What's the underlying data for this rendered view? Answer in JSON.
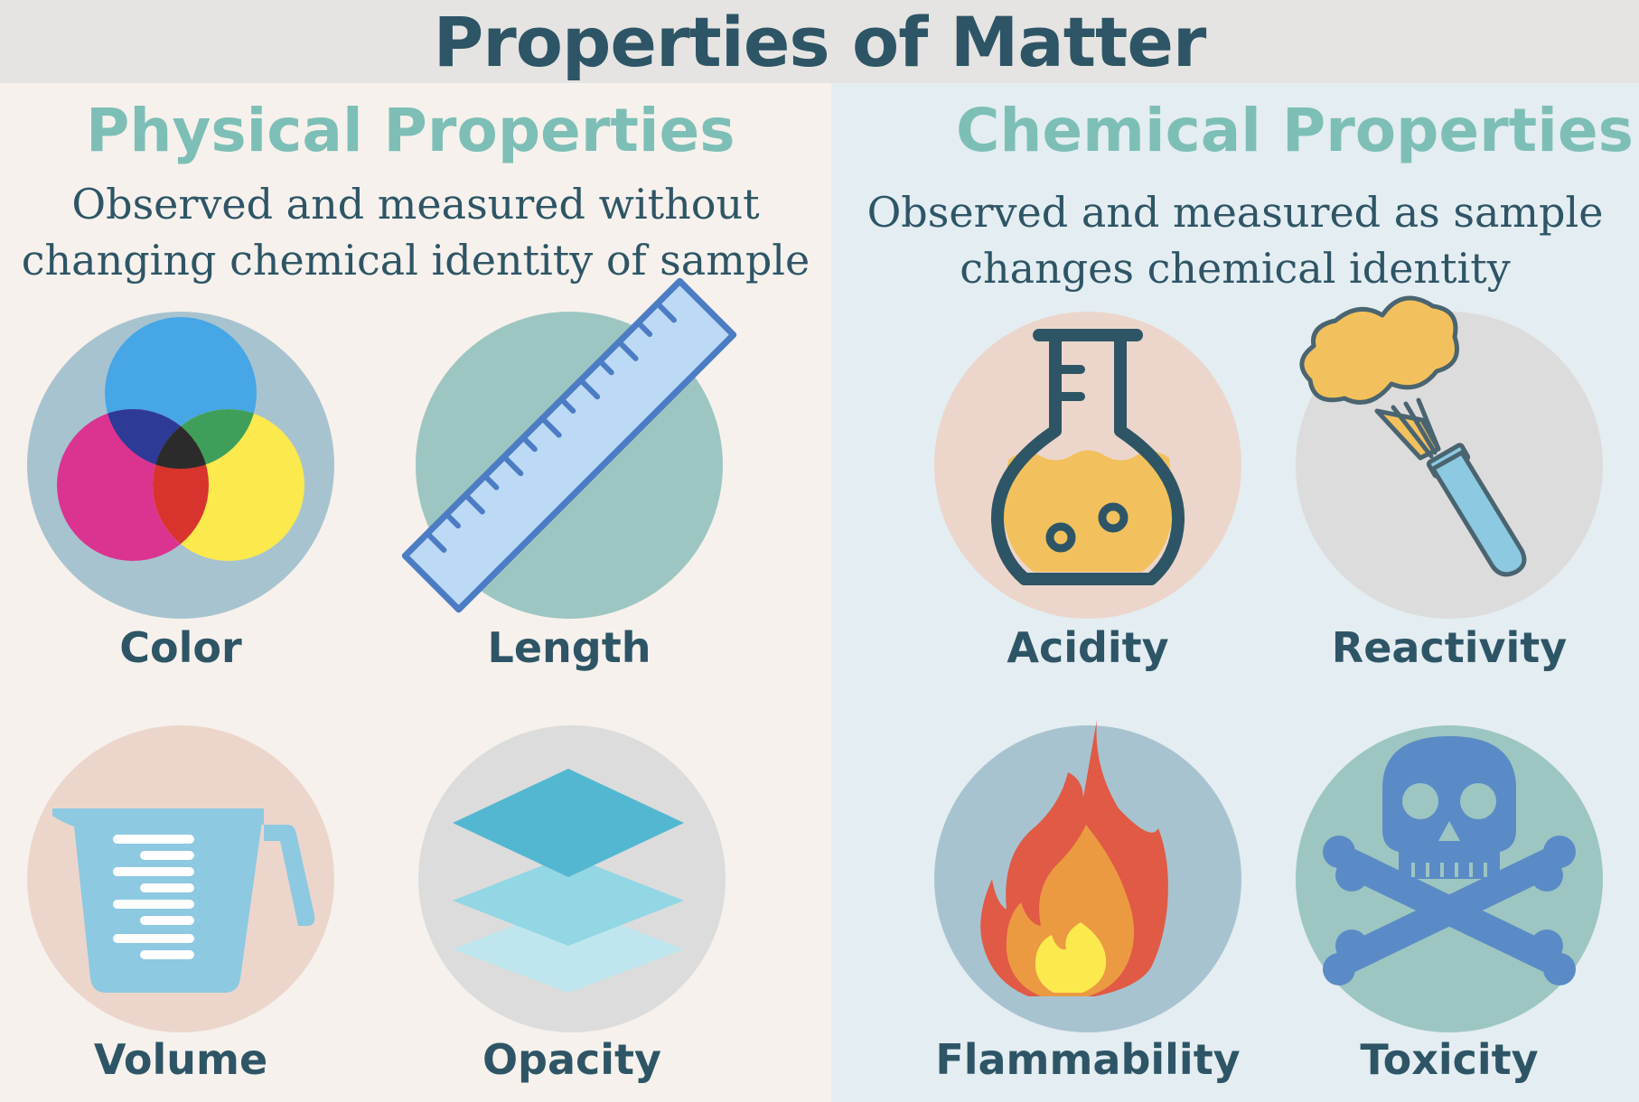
{
  "title": "Properties of Matter",
  "physical": {
    "heading": "Physical Properties",
    "description_line1": "Observed and measured without",
    "description_line2": "changing chemical identity of sample",
    "items": [
      {
        "label": "Color",
        "icon": "color-venn-icon",
        "circle_color": "#a8c3d0"
      },
      {
        "label": "Length",
        "icon": "ruler-icon",
        "circle_color": "#9dc6c2"
      },
      {
        "label": "Volume",
        "icon": "measuring-cup-icon",
        "circle_color": "#ecd6cc"
      },
      {
        "label": "Opacity",
        "icon": "layers-icon",
        "circle_color": "#dcdcdc"
      }
    ]
  },
  "chemical": {
    "heading": "Chemical Properties",
    "description_line1": "Observed and measured as sample",
    "description_line2": "changes chemical identity",
    "items": [
      {
        "label": "Acidity",
        "icon": "flask-icon",
        "circle_color": "#ecd6cc"
      },
      {
        "label": "Reactivity",
        "icon": "test-tube-reaction-icon",
        "circle_color": "#dcdcdc"
      },
      {
        "label": "Flammability",
        "icon": "flame-icon",
        "circle_color": "#a8c3d0"
      },
      {
        "label": "Toxicity",
        "icon": "skull-crossbones-icon",
        "circle_color": "#9dc6c2"
      }
    ]
  },
  "colors": {
    "title_text": "#2e5566",
    "heading_text": "#7dbfb6",
    "left_panel": "#f6f1ec",
    "right_panel": "#e4edf1"
  }
}
